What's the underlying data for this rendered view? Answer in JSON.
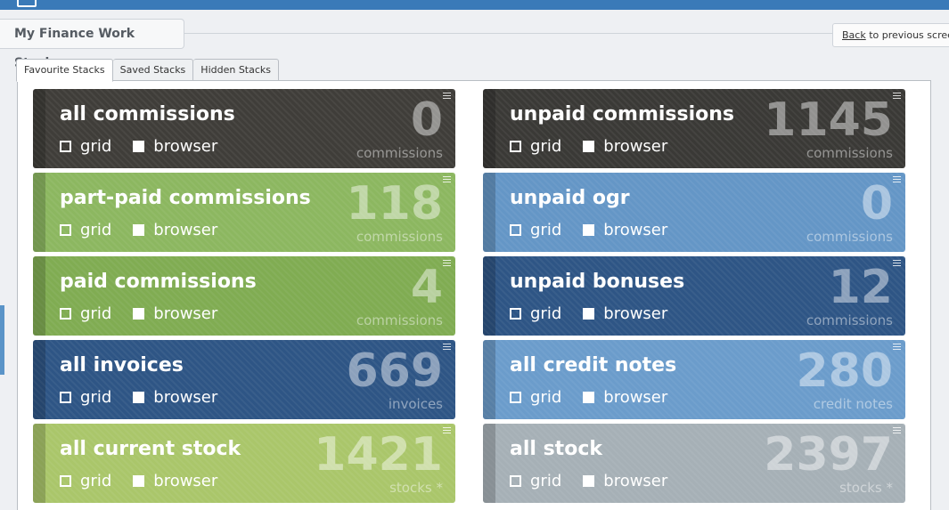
{
  "page": {
    "title": "My Finance Work Stacks",
    "back_link": "Back",
    "back_text": "to previous screen"
  },
  "tabs": [
    {
      "label": "Favourite Stacks",
      "active": true
    },
    {
      "label": "Saved Stacks",
      "active": false
    },
    {
      "label": "Hidden Stacks",
      "active": false
    }
  ],
  "options": {
    "grid": "grid",
    "browser": "browser"
  },
  "cards": [
    {
      "title": "all commissions",
      "count": "0",
      "unit": "commissions",
      "color": "#3f3d39"
    },
    {
      "title": "unpaid commissions",
      "count": "1145",
      "unit": "commissions",
      "color": "#3a3936"
    },
    {
      "title": "part-paid commissions",
      "count": "118",
      "unit": "commissions",
      "color": "#8cb760"
    },
    {
      "title": "unpaid ogr",
      "count": "0",
      "unit": "commissions",
      "color": "#6496c6"
    },
    {
      "title": "paid commissions",
      "count": "4",
      "unit": "commissions",
      "color": "#80ac52"
    },
    {
      "title": "unpaid bonuses",
      "count": "12",
      "unit": "commissions",
      "color": "#2e5585"
    },
    {
      "title": "all invoices",
      "count": "669",
      "unit": "invoices",
      "color": "#2e5585"
    },
    {
      "title": "all credit notes",
      "count": "280",
      "unit": "credit notes",
      "color": "#6b9ccb"
    },
    {
      "title": "all current stock",
      "count": "1421",
      "unit": "stocks *",
      "color": "#aac66a"
    },
    {
      "title": "all stock",
      "count": "2397",
      "unit": "stocks *",
      "color": "#a6b0b6"
    }
  ]
}
